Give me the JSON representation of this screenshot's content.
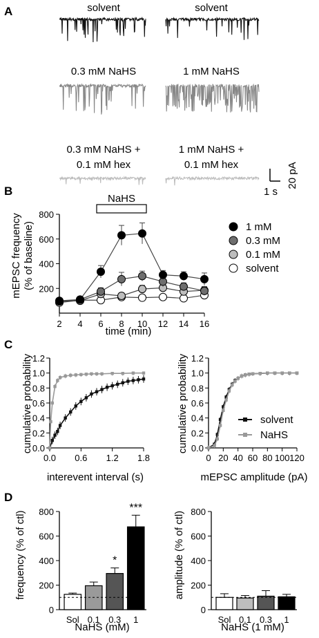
{
  "panels": {
    "a": "A",
    "b": "B",
    "c": "C",
    "d": "D"
  },
  "traces": {
    "labels": [
      "solvent",
      "solvent",
      "0.3 mM NaHS",
      "1 mM NaHS",
      "0.3 mM NaHS +",
      "0.1 mM hex",
      "1 mM NaHS +",
      "0.1 mM hex"
    ],
    "scale_time": "1 s",
    "scale_current": "20 pA",
    "colors": {
      "solvent": "#111111",
      "nahs": "#888888",
      "hex": "#bdbdbd"
    }
  },
  "chart_data": [
    {
      "type": "line",
      "title": "",
      "xlabel": "time (min)",
      "ylabel": "mEPSC frequency (% of baseline)",
      "ylabel_lines": [
        "mEPSC frequency",
        "(% of baseline)"
      ],
      "x": [
        2,
        4,
        6,
        8,
        10,
        12,
        14,
        16
      ],
      "xlim": [
        2,
        16
      ],
      "ylim": [
        0,
        800
      ],
      "xticks": [
        "2",
        "4",
        "6",
        "8",
        "10",
        "12",
        "14",
        "16"
      ],
      "yticks": [
        "200",
        "400",
        "600",
        "800"
      ],
      "bar_label": "NaHS",
      "bar_range": [
        5.6,
        10.4
      ],
      "legend_position": "right",
      "series": [
        {
          "name": "1 mM",
          "color": "#000000",
          "values": [
            100,
            110,
            335,
            630,
            645,
            310,
            300,
            275
          ],
          "err": [
            20,
            25,
            50,
            80,
            85,
            35,
            35,
            50
          ]
        },
        {
          "name": "0.3 mM",
          "color": "#6e6e6e",
          "values": [
            95,
            110,
            175,
            275,
            300,
            255,
            215,
            180
          ],
          "err": [
            15,
            20,
            30,
            55,
            40,
            40,
            30,
            35
          ]
        },
        {
          "name": "0.1 mM",
          "color": "#bdbdbd",
          "values": [
            95,
            100,
            155,
            140,
            195,
            205,
            175,
            185
          ],
          "err": [
            15,
            15,
            25,
            25,
            30,
            30,
            25,
            30
          ]
        },
        {
          "name": "solvent",
          "color": "#ffffff",
          "values": [
            85,
            105,
            105,
            130,
            125,
            130,
            120,
            145
          ],
          "err": [
            10,
            15,
            15,
            20,
            20,
            20,
            20,
            25
          ]
        }
      ]
    },
    {
      "type": "line",
      "title": "",
      "xlabel": "interevent interval (s)",
      "ylabel": "cumulative probability",
      "xlim": [
        0,
        1.8
      ],
      "ylim": [
        0,
        1.2
      ],
      "xticks": [
        "0.0",
        "0.6",
        "1.2",
        "1.8"
      ],
      "yticks": [
        "0.0",
        "0.2",
        "0.4",
        "0.6",
        "0.8",
        "1.0",
        "1.2"
      ],
      "series": [
        {
          "name": "solvent",
          "color": "#111111",
          "x": [
            0,
            0.05,
            0.1,
            0.15,
            0.2,
            0.3,
            0.4,
            0.5,
            0.6,
            0.7,
            0.8,
            0.9,
            1.0,
            1.1,
            1.2,
            1.3,
            1.4,
            1.5,
            1.6,
            1.7,
            1.8
          ],
          "values": [
            0.0,
            0.1,
            0.17,
            0.22,
            0.3,
            0.4,
            0.48,
            0.56,
            0.62,
            0.67,
            0.72,
            0.75,
            0.78,
            0.81,
            0.83,
            0.85,
            0.87,
            0.89,
            0.9,
            0.91,
            0.92
          ]
        },
        {
          "name": "NaHS",
          "color": "#999999",
          "x": [
            0,
            0.02,
            0.05,
            0.1,
            0.15,
            0.2,
            0.3,
            0.4,
            0.5,
            0.6,
            0.7,
            0.8,
            0.9,
            1.0,
            1.2,
            1.4,
            1.6,
            1.8
          ],
          "values": [
            0.0,
            0.35,
            0.6,
            0.82,
            0.9,
            0.94,
            0.96,
            0.97,
            0.975,
            0.98,
            0.985,
            0.99,
            0.99,
            0.99,
            0.995,
            0.995,
            1.0,
            1.0
          ]
        }
      ]
    },
    {
      "type": "line",
      "title": "",
      "xlabel": "mEPSC amplitude (pA)",
      "ylabel": "cumulative probability",
      "xlim": [
        0,
        120
      ],
      "ylim": [
        0,
        1.2
      ],
      "xticks": [
        "0",
        "20",
        "40",
        "60",
        "80",
        "100",
        "120"
      ],
      "yticks": [
        "0.0",
        "0.2",
        "0.4",
        "0.6",
        "0.8",
        "1.0",
        "1.2"
      ],
      "legend_position": "bottom-right",
      "series": [
        {
          "name": "solvent",
          "color": "#111111",
          "x": [
            0,
            8,
            12,
            16,
            20,
            24,
            28,
            32,
            36,
            40,
            45,
            50,
            55,
            60,
            70,
            80,
            90,
            100,
            110,
            120
          ],
          "values": [
            0,
            0.05,
            0.18,
            0.38,
            0.55,
            0.68,
            0.78,
            0.85,
            0.9,
            0.93,
            0.96,
            0.975,
            0.985,
            0.99,
            0.995,
            1.0,
            1.0,
            1.0,
            1.0,
            1.0
          ]
        },
        {
          "name": "NaHS",
          "color": "#999999",
          "x": [
            0,
            8,
            12,
            16,
            20,
            24,
            28,
            32,
            36,
            40,
            45,
            50,
            55,
            60,
            70,
            80,
            90,
            100,
            110,
            120
          ],
          "values": [
            0,
            0.03,
            0.12,
            0.3,
            0.5,
            0.64,
            0.76,
            0.84,
            0.89,
            0.93,
            0.96,
            0.975,
            0.985,
            0.99,
            0.995,
            1.0,
            1.0,
            1.0,
            1.0,
            1.0
          ]
        }
      ]
    },
    {
      "type": "bar",
      "title": "",
      "xlabel": "NaHS (mM)",
      "ylabel": "frequency (% of ctl)",
      "categories": [
        "Sol",
        "0.1",
        "0.3",
        "1"
      ],
      "values": [
        125,
        195,
        295,
        675
      ],
      "err": [
        10,
        30,
        45,
        95
      ],
      "colors": [
        "#ffffff",
        "#9a9a9a",
        "#555555",
        "#000000"
      ],
      "significance": [
        "",
        "",
        "*",
        "***"
      ],
      "reference_line": 100,
      "ylim": [
        0,
        800
      ],
      "yticks": [
        "0",
        "200",
        "400",
        "600",
        "800"
      ]
    },
    {
      "type": "bar",
      "title": "",
      "xlabel": "NaHS (1 mM)",
      "ylabel": "amplitude (% of ctl)",
      "categories": [
        "Sol",
        "0.1",
        "0.3",
        "1"
      ],
      "values": [
        100,
        95,
        110,
        105
      ],
      "err": [
        30,
        20,
        45,
        20
      ],
      "colors": [
        "#ffffff",
        "#bdbdbd",
        "#555555",
        "#000000"
      ],
      "significance": [
        "",
        "",
        "",
        ""
      ],
      "reference_line": 100,
      "ylim": [
        0,
        800
      ],
      "yticks": [
        "0",
        "200",
        "400",
        "600",
        "800"
      ]
    }
  ]
}
